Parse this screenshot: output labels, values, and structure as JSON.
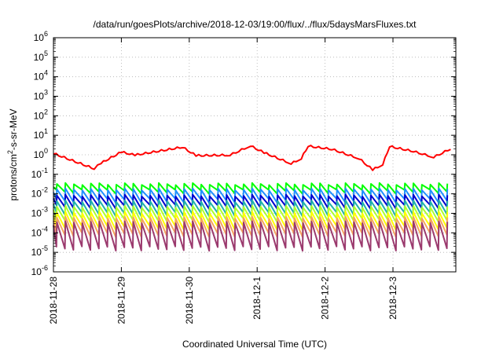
{
  "chart_data": {
    "type": "line",
    "title": "/data/run/goesPlots/archive/2018-12-03/19:00/flux/../flux/5daysMarsFluxes.txt",
    "xlabel": "Coordinated Universal Time (UTC)",
    "ylabel": {
      "base": "protons/cm",
      "sup": "2",
      "rest": "-s-sr-MeV"
    },
    "yscale": "log",
    "ylim_exp": [
      -6,
      6
    ],
    "yticks": [
      {
        "base": "10",
        "exp": "-6",
        "value": -6
      },
      {
        "base": "10",
        "exp": "-5",
        "value": -5
      },
      {
        "base": "10",
        "exp": "-4",
        "value": -4
      },
      {
        "base": "10",
        "exp": "-3",
        "value": -3
      },
      {
        "base": "10",
        "exp": "-2",
        "value": -2
      },
      {
        "base": "10",
        "exp": "-1",
        "value": -1
      },
      {
        "base": "10",
        "exp": "0",
        "value": 0
      },
      {
        "base": "10",
        "exp": "1",
        "value": 1
      },
      {
        "base": "10",
        "exp": "2",
        "value": 2
      },
      {
        "base": "10",
        "exp": "3",
        "value": 3
      },
      {
        "base": "10",
        "exp": "4",
        "value": 4
      },
      {
        "base": "10",
        "exp": "5",
        "value": 5
      },
      {
        "base": "10",
        "exp": "6",
        "value": 6
      }
    ],
    "xticks": [
      "2018-11-28",
      "2018-11-29",
      "2018-11-30",
      "2018-12-1",
      "2018-12-2",
      "2018-12-3"
    ],
    "xlim_days": [
      0,
      5.85
    ],
    "grid": true,
    "series": [
      {
        "color": "#ff0000",
        "pattern": "drift",
        "anchors": [
          [
            0,
            1.1
          ],
          [
            0.6,
            0.18
          ],
          [
            0.7,
            0.35
          ],
          [
            1.0,
            1.3
          ],
          [
            1.2,
            0.9
          ],
          [
            1.9,
            2.3
          ],
          [
            2.1,
            0.85
          ],
          [
            2.6,
            0.9
          ],
          [
            2.9,
            2.7
          ],
          [
            3.1,
            1.2
          ],
          [
            3.5,
            0.33
          ],
          [
            3.65,
            0.6
          ],
          [
            3.75,
            2.6
          ],
          [
            4.1,
            1.8
          ],
          [
            4.5,
            0.6
          ],
          [
            4.7,
            0.16
          ],
          [
            4.85,
            0.3
          ],
          [
            4.95,
            2.5
          ],
          [
            5.3,
            1.4
          ],
          [
            5.6,
            0.7
          ],
          [
            5.85,
            1.9
          ]
        ]
      },
      {
        "color": "#00ff00",
        "pattern": "saw",
        "period": 0.125,
        "top": 0.032,
        "bottom": 0.013
      },
      {
        "color": "#1e90ff",
        "pattern": "saw",
        "period": 0.125,
        "top": 0.017,
        "bottom": 0.0045
      },
      {
        "color": "#0000cd",
        "pattern": "saw",
        "period": 0.125,
        "top": 0.0082,
        "bottom": 0.0022
      },
      {
        "color": "#20b2aa",
        "pattern": "saw",
        "period": 0.125,
        "top": 0.0042,
        "bottom": 0.0009
      },
      {
        "color": "#adff2f",
        "pattern": "saw",
        "period": 0.125,
        "top": 0.0022,
        "bottom": 0.00045
      },
      {
        "color": "#ffff00",
        "pattern": "saw",
        "period": 0.125,
        "top": 0.0011,
        "bottom": 0.00018
      },
      {
        "color": "#f4a460",
        "pattern": "saw",
        "period": 0.125,
        "top": 0.0006,
        "bottom": 8e-05
      },
      {
        "color": "#9b3a6e",
        "pattern": "saw",
        "period": 0.125,
        "top": 0.00035,
        "bottom": 1.6e-05
      }
    ]
  }
}
